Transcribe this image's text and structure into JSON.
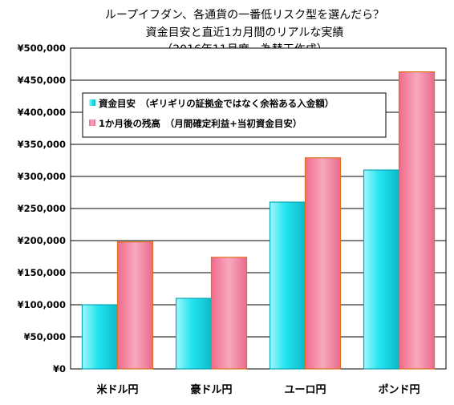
{
  "chart_data": {
    "type": "bar",
    "title_lines": [
      "ループイフダン、各通貨の一番低リスク型を選んだら？",
      "資金目安と直近1カ月間のリアルな実績",
      "（2016年11月度、為替王作成）"
    ],
    "categories": [
      "米ドル円",
      "豪ドル円",
      "ユーロ円",
      "ポンド円"
    ],
    "series": [
      {
        "name": "資金目安　（ギリギリの証拠金ではなく余裕ある入金額）",
        "color": "#1ee6f0",
        "values": [
          100000,
          110000,
          260000,
          310000
        ]
      },
      {
        "name": "1か月後の残高　（月間確定利益+当初資金目安）",
        "color": "#f47a9a",
        "values": [
          198000,
          174000,
          329000,
          463000
        ]
      }
    ],
    "y_ticks": [
      "¥0",
      "¥50,000",
      "¥100,000",
      "¥150,000",
      "¥200,000",
      "¥250,000",
      "¥300,000",
      "¥350,000",
      "¥400,000",
      "¥450,000",
      "¥500,000"
    ],
    "ylim": [
      0,
      500000
    ],
    "ytick_step": 50000,
    "grid": true,
    "legend_position": "top-left"
  }
}
